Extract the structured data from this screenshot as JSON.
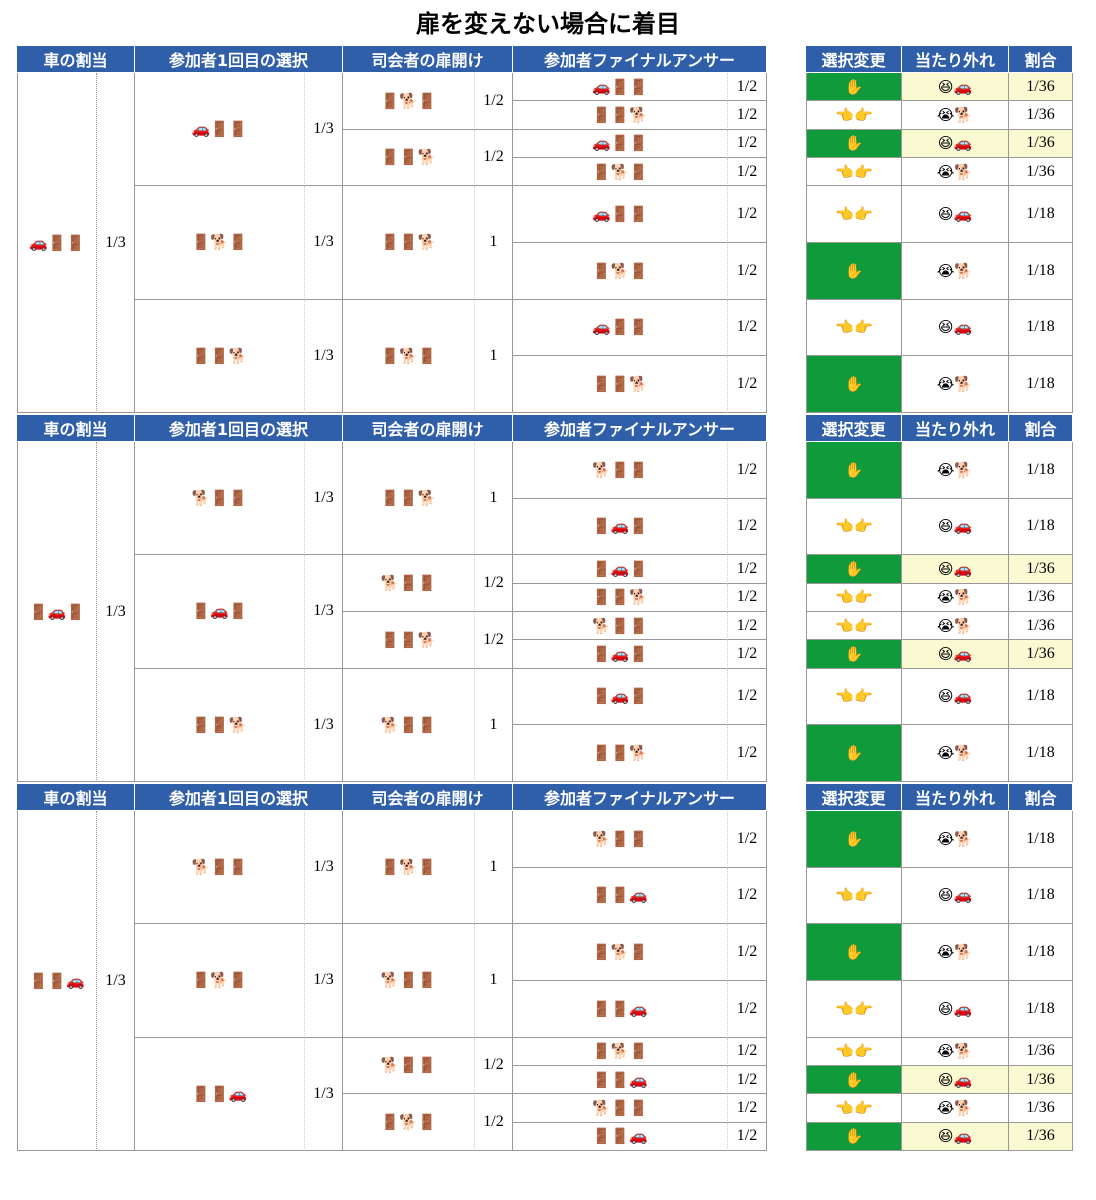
{
  "title": "扉を変えない場合に着目",
  "sections": [
    {
      "header": [
        "車の割当",
        "参加者1回目の選択",
        "司会者の扉開け",
        "参加者ファイナルアンサー"
      ],
      "header_right": [
        "選択変更",
        "当たり外れ",
        "割合"
      ],
      "placement": "🚗🚪🚪",
      "placement_prob": "1/3",
      "choices": [
        {
          "choice": "🚗🚪🚪",
          "prob": "1/3",
          "hosts": [
            {
              "host": "🚪🐕🚪",
              "prob": "1/2",
              "finals": [
                {
                  "doors": "🚗🚪🚪",
                  "prob": "1/2",
                  "change": "✋",
                  "result": "😆🚗",
                  "ratio": "1/36",
                  "change_bg": "#0f9a3c",
                  "result_bg": "#fafad2"
                },
                {
                  "doors": "🚪🚪🐕",
                  "prob": "1/2",
                  "change": "👈👉",
                  "result": "😭🐕",
                  "ratio": "1/36"
                }
              ]
            },
            {
              "host": "🚪🚪🐕",
              "prob": "1/2",
              "finals": [
                {
                  "doors": "🚗🚪🚪",
                  "prob": "1/2",
                  "change": "✋",
                  "result": "😆🚗",
                  "ratio": "1/36",
                  "change_bg": "#0f9a3c",
                  "result_bg": "#fafad2"
                },
                {
                  "doors": "🚪🐕🚪",
                  "prob": "1/2",
                  "change": "👈👉",
                  "result": "😭🐕",
                  "ratio": "1/36"
                }
              ]
            }
          ]
        },
        {
          "choice": "🚪🐕🚪",
          "prob": "1/3",
          "hosts": [
            {
              "host": "🚪🚪🐕",
              "prob": "1",
              "finals": [
                {
                  "doors": "🚗🚪🚪",
                  "prob": "1/2",
                  "change": "👈👉",
                  "result": "😆🚗",
                  "ratio": "1/18"
                },
                {
                  "doors": "🚪🐕🚪",
                  "prob": "1/2",
                  "change": "✋",
                  "result": "😭🐕",
                  "ratio": "1/18",
                  "change_bg": "#0f9a3c"
                }
              ]
            }
          ]
        },
        {
          "choice": "🚪🚪🐕",
          "prob": "1/3",
          "hosts": [
            {
              "host": "🚪🐕🚪",
              "prob": "1",
              "finals": [
                {
                  "doors": "🚗🚪🚪",
                  "prob": "1/2",
                  "change": "👈👉",
                  "result": "😆🚗",
                  "ratio": "1/18"
                },
                {
                  "doors": "🚪🚪🐕",
                  "prob": "1/2",
                  "change": "✋",
                  "result": "😭🐕",
                  "ratio": "1/18",
                  "change_bg": "#0f9a3c"
                }
              ]
            }
          ]
        }
      ]
    },
    {
      "header": [
        "車の割当",
        "参加者1回目の選択",
        "司会者の扉開け",
        "参加者ファイナルアンサー"
      ],
      "header_right": [
        "選択変更",
        "当たり外れ",
        "割合"
      ],
      "placement": "🚪🚗🚪",
      "placement_prob": "1/3",
      "choices": [
        {
          "choice": "🐕🚪🚪",
          "prob": "1/3",
          "hosts": [
            {
              "host": "🚪🚪🐕",
              "prob": "1",
              "finals": [
                {
                  "doors": "🐕🚪🚪",
                  "prob": "1/2",
                  "change": "✋",
                  "result": "😭🐕",
                  "ratio": "1/18",
                  "change_bg": "#0f9a3c"
                },
                {
                  "doors": "🚪🚗🚪",
                  "prob": "1/2",
                  "change": "👈👉",
                  "result": "😆🚗",
                  "ratio": "1/18"
                }
              ]
            }
          ]
        },
        {
          "choice": "🚪🚗🚪",
          "prob": "1/3",
          "hosts": [
            {
              "host": "🐕🚪🚪",
              "prob": "1/2",
              "finals": [
                {
                  "doors": "🚪🚗🚪",
                  "prob": "1/2",
                  "change": "✋",
                  "result": "😆🚗",
                  "ratio": "1/36",
                  "change_bg": "#0f9a3c",
                  "result_bg": "#fafad2"
                },
                {
                  "doors": "🚪🚪🐕",
                  "prob": "1/2",
                  "change": "👈👉",
                  "result": "😭🐕",
                  "ratio": "1/36"
                }
              ]
            },
            {
              "host": "🚪🚪🐕",
              "prob": "1/2",
              "finals": [
                {
                  "doors": "🐕🚪🚪",
                  "prob": "1/2",
                  "change": "👈👉",
                  "result": "😭🐕",
                  "ratio": "1/36"
                },
                {
                  "doors": "🚪🚗🚪",
                  "prob": "1/2",
                  "change": "✋",
                  "result": "😆🚗",
                  "ratio": "1/36",
                  "change_bg": "#0f9a3c",
                  "result_bg": "#fafad2"
                }
              ]
            }
          ]
        },
        {
          "choice": "🚪🚪🐕",
          "prob": "1/3",
          "hosts": [
            {
              "host": "🐕🚪🚪",
              "prob": "1",
              "finals": [
                {
                  "doors": "🚪🚗🚪",
                  "prob": "1/2",
                  "change": "👈👉",
                  "result": "😆🚗",
                  "ratio": "1/18"
                },
                {
                  "doors": "🚪🚪🐕",
                  "prob": "1/2",
                  "change": "✋",
                  "result": "😭🐕",
                  "ratio": "1/18",
                  "change_bg": "#0f9a3c"
                }
              ]
            }
          ]
        }
      ]
    },
    {
      "header": [
        "車の割当",
        "参加者1回目の選択",
        "司会者の扉開け",
        "参加者ファイナルアンサー"
      ],
      "header_right": [
        "選択変更",
        "当たり外れ",
        "割合"
      ],
      "placement": "🚪🚪🚗",
      "placement_prob": "1/3",
      "choices": [
        {
          "choice": "🐕🚪🚪",
          "prob": "1/3",
          "hosts": [
            {
              "host": "🚪🐕🚪",
              "prob": "1",
              "finals": [
                {
                  "doors": "🐕🚪🚪",
                  "prob": "1/2",
                  "change": "✋",
                  "result": "😭🐕",
                  "ratio": "1/18",
                  "change_bg": "#0f9a3c"
                },
                {
                  "doors": "🚪🚪🚗",
                  "prob": "1/2",
                  "change": "👈👉",
                  "result": "😆🚗",
                  "ratio": "1/18"
                }
              ]
            }
          ]
        },
        {
          "choice": "🚪🐕🚪",
          "prob": "1/3",
          "hosts": [
            {
              "host": "🐕🚪🚪",
              "prob": "1",
              "finals": [
                {
                  "doors": "🚪🐕🚪",
                  "prob": "1/2",
                  "change": "✋",
                  "result": "😭🐕",
                  "ratio": "1/18",
                  "change_bg": "#0f9a3c"
                },
                {
                  "doors": "🚪🚪🚗",
                  "prob": "1/2",
                  "change": "👈👉",
                  "result": "😆🚗",
                  "ratio": "1/18"
                }
              ]
            }
          ]
        },
        {
          "choice": "🚪🚪🚗",
          "prob": "1/3",
          "hosts": [
            {
              "host": "🐕🚪🚪",
              "prob": "1/2",
              "finals": [
                {
                  "doors": "🚪🐕🚪",
                  "prob": "1/2",
                  "change": "👈👉",
                  "result": "😭🐕",
                  "ratio": "1/36"
                },
                {
                  "doors": "🚪🚪🚗",
                  "prob": "1/2",
                  "change": "✋",
                  "result": "😆🚗",
                  "ratio": "1/36",
                  "change_bg": "#0f9a3c",
                  "result_bg": "#fafad2"
                }
              ]
            },
            {
              "host": "🚪🐕🚪",
              "prob": "1/2",
              "finals": [
                {
                  "doors": "🐕🚪🚪",
                  "prob": "1/2",
                  "change": "👈👉",
                  "result": "😭🐕",
                  "ratio": "1/36"
                },
                {
                  "doors": "🚪🚪🚗",
                  "prob": "1/2",
                  "change": "✋",
                  "result": "😆🚗",
                  "ratio": "1/36",
                  "change_bg": "#0f9a3c",
                  "result_bg": "#fafad2"
                }
              ]
            }
          ]
        }
      ]
    }
  ]
}
